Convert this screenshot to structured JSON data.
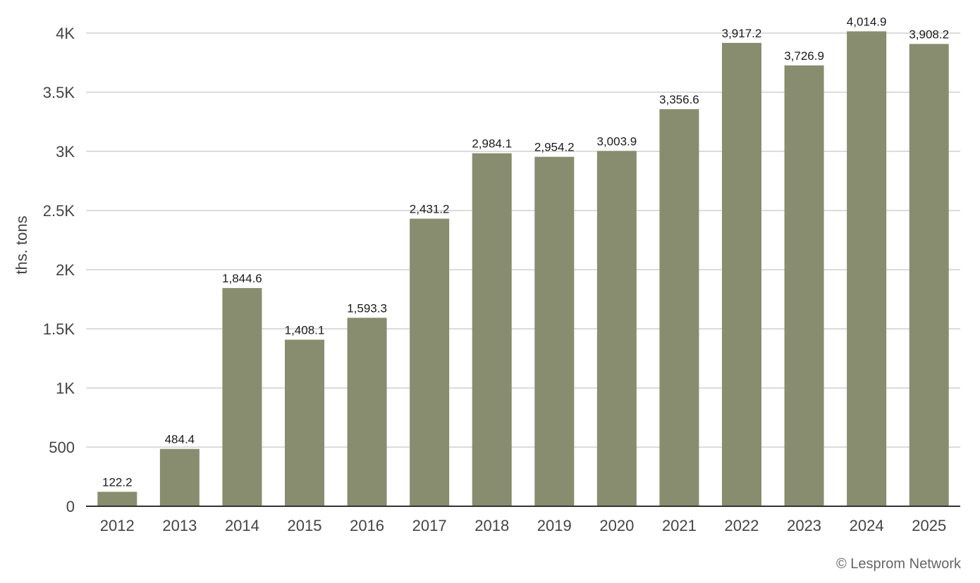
{
  "chart_data": {
    "type": "bar",
    "ylabel": "ths. tons",
    "ylim": [
      0,
      4000
    ],
    "y_ticks": [
      {
        "value": 0,
        "label": "0"
      },
      {
        "value": 500,
        "label": "500"
      },
      {
        "value": 1000,
        "label": "1K"
      },
      {
        "value": 1500,
        "label": "1.5K"
      },
      {
        "value": 2000,
        "label": "2K"
      },
      {
        "value": 2500,
        "label": "2.5K"
      },
      {
        "value": 3000,
        "label": "3K"
      },
      {
        "value": 3500,
        "label": "3.5K"
      },
      {
        "value": 4000,
        "label": "4K"
      }
    ],
    "categories": [
      "2012",
      "2013",
      "2014",
      "2015",
      "2016",
      "2017",
      "2018",
      "2019",
      "2020",
      "2021",
      "2022",
      "2023",
      "2024",
      "2025"
    ],
    "values": [
      122.2,
      484.4,
      1844.6,
      1408.1,
      1593.3,
      2431.2,
      2984.1,
      2954.2,
      3003.9,
      3356.6,
      3917.2,
      3726.9,
      4014.9,
      3908.2
    ],
    "value_labels": [
      "122.2",
      "484.4",
      "1,844.6",
      "1,408.1",
      "1,593.3",
      "2,431.2",
      "2,984.1",
      "2,954.2",
      "3,003.9",
      "3,356.6",
      "3,917.2",
      "3,726.9",
      "4,014.9",
      "3,908.2"
    ],
    "grid": true,
    "legend": "none"
  },
  "colors": {
    "bar": "#878d6e",
    "grid": "#d0d0d0",
    "axis": "#333333",
    "tick_text": "#444444",
    "value_text": "#1a1a1a"
  },
  "footer": {
    "copyright": "© Lesprom Network"
  }
}
